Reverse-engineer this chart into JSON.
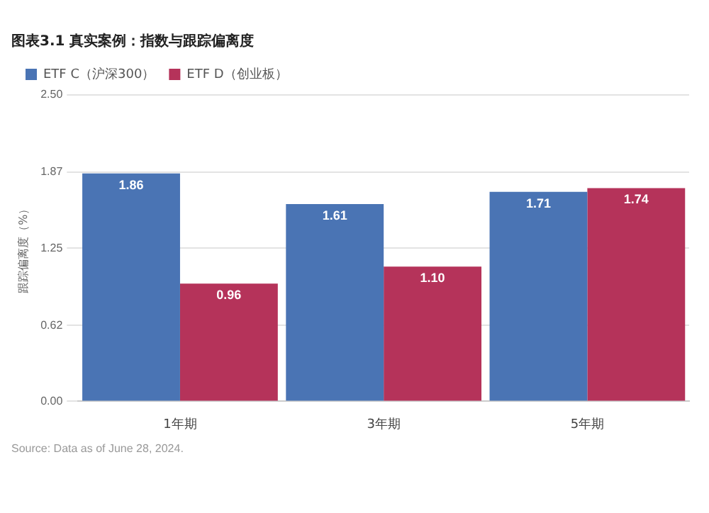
{
  "chart_data": {
    "type": "bar",
    "title": "图表3.1 真实案例：指数与跟踪偏离度",
    "ylabel": "跟踪偏离度（%）",
    "categories": [
      "1年期",
      "3年期",
      "5年期"
    ],
    "series": [
      {
        "name": "ETF C（沪深300）",
        "color": "#4a74b4",
        "values": [
          1.86,
          1.61,
          1.71
        ],
        "value_labels": [
          "1.86",
          "1.61",
          "1.71"
        ]
      },
      {
        "name": "ETF D（创业板）",
        "color": "#b5335a",
        "values": [
          0.96,
          1.1,
          1.74
        ],
        "value_labels": [
          "0.96",
          "1.10",
          "1.74"
        ]
      }
    ],
    "ylim": [
      0,
      2.5
    ],
    "yticks": [
      "0.00",
      "0.62",
      "1.25",
      "1.87",
      "2.50"
    ],
    "grid": "y",
    "legend": "top left",
    "annotations": [
      "Source: Data as of June 28, 2024."
    ]
  }
}
